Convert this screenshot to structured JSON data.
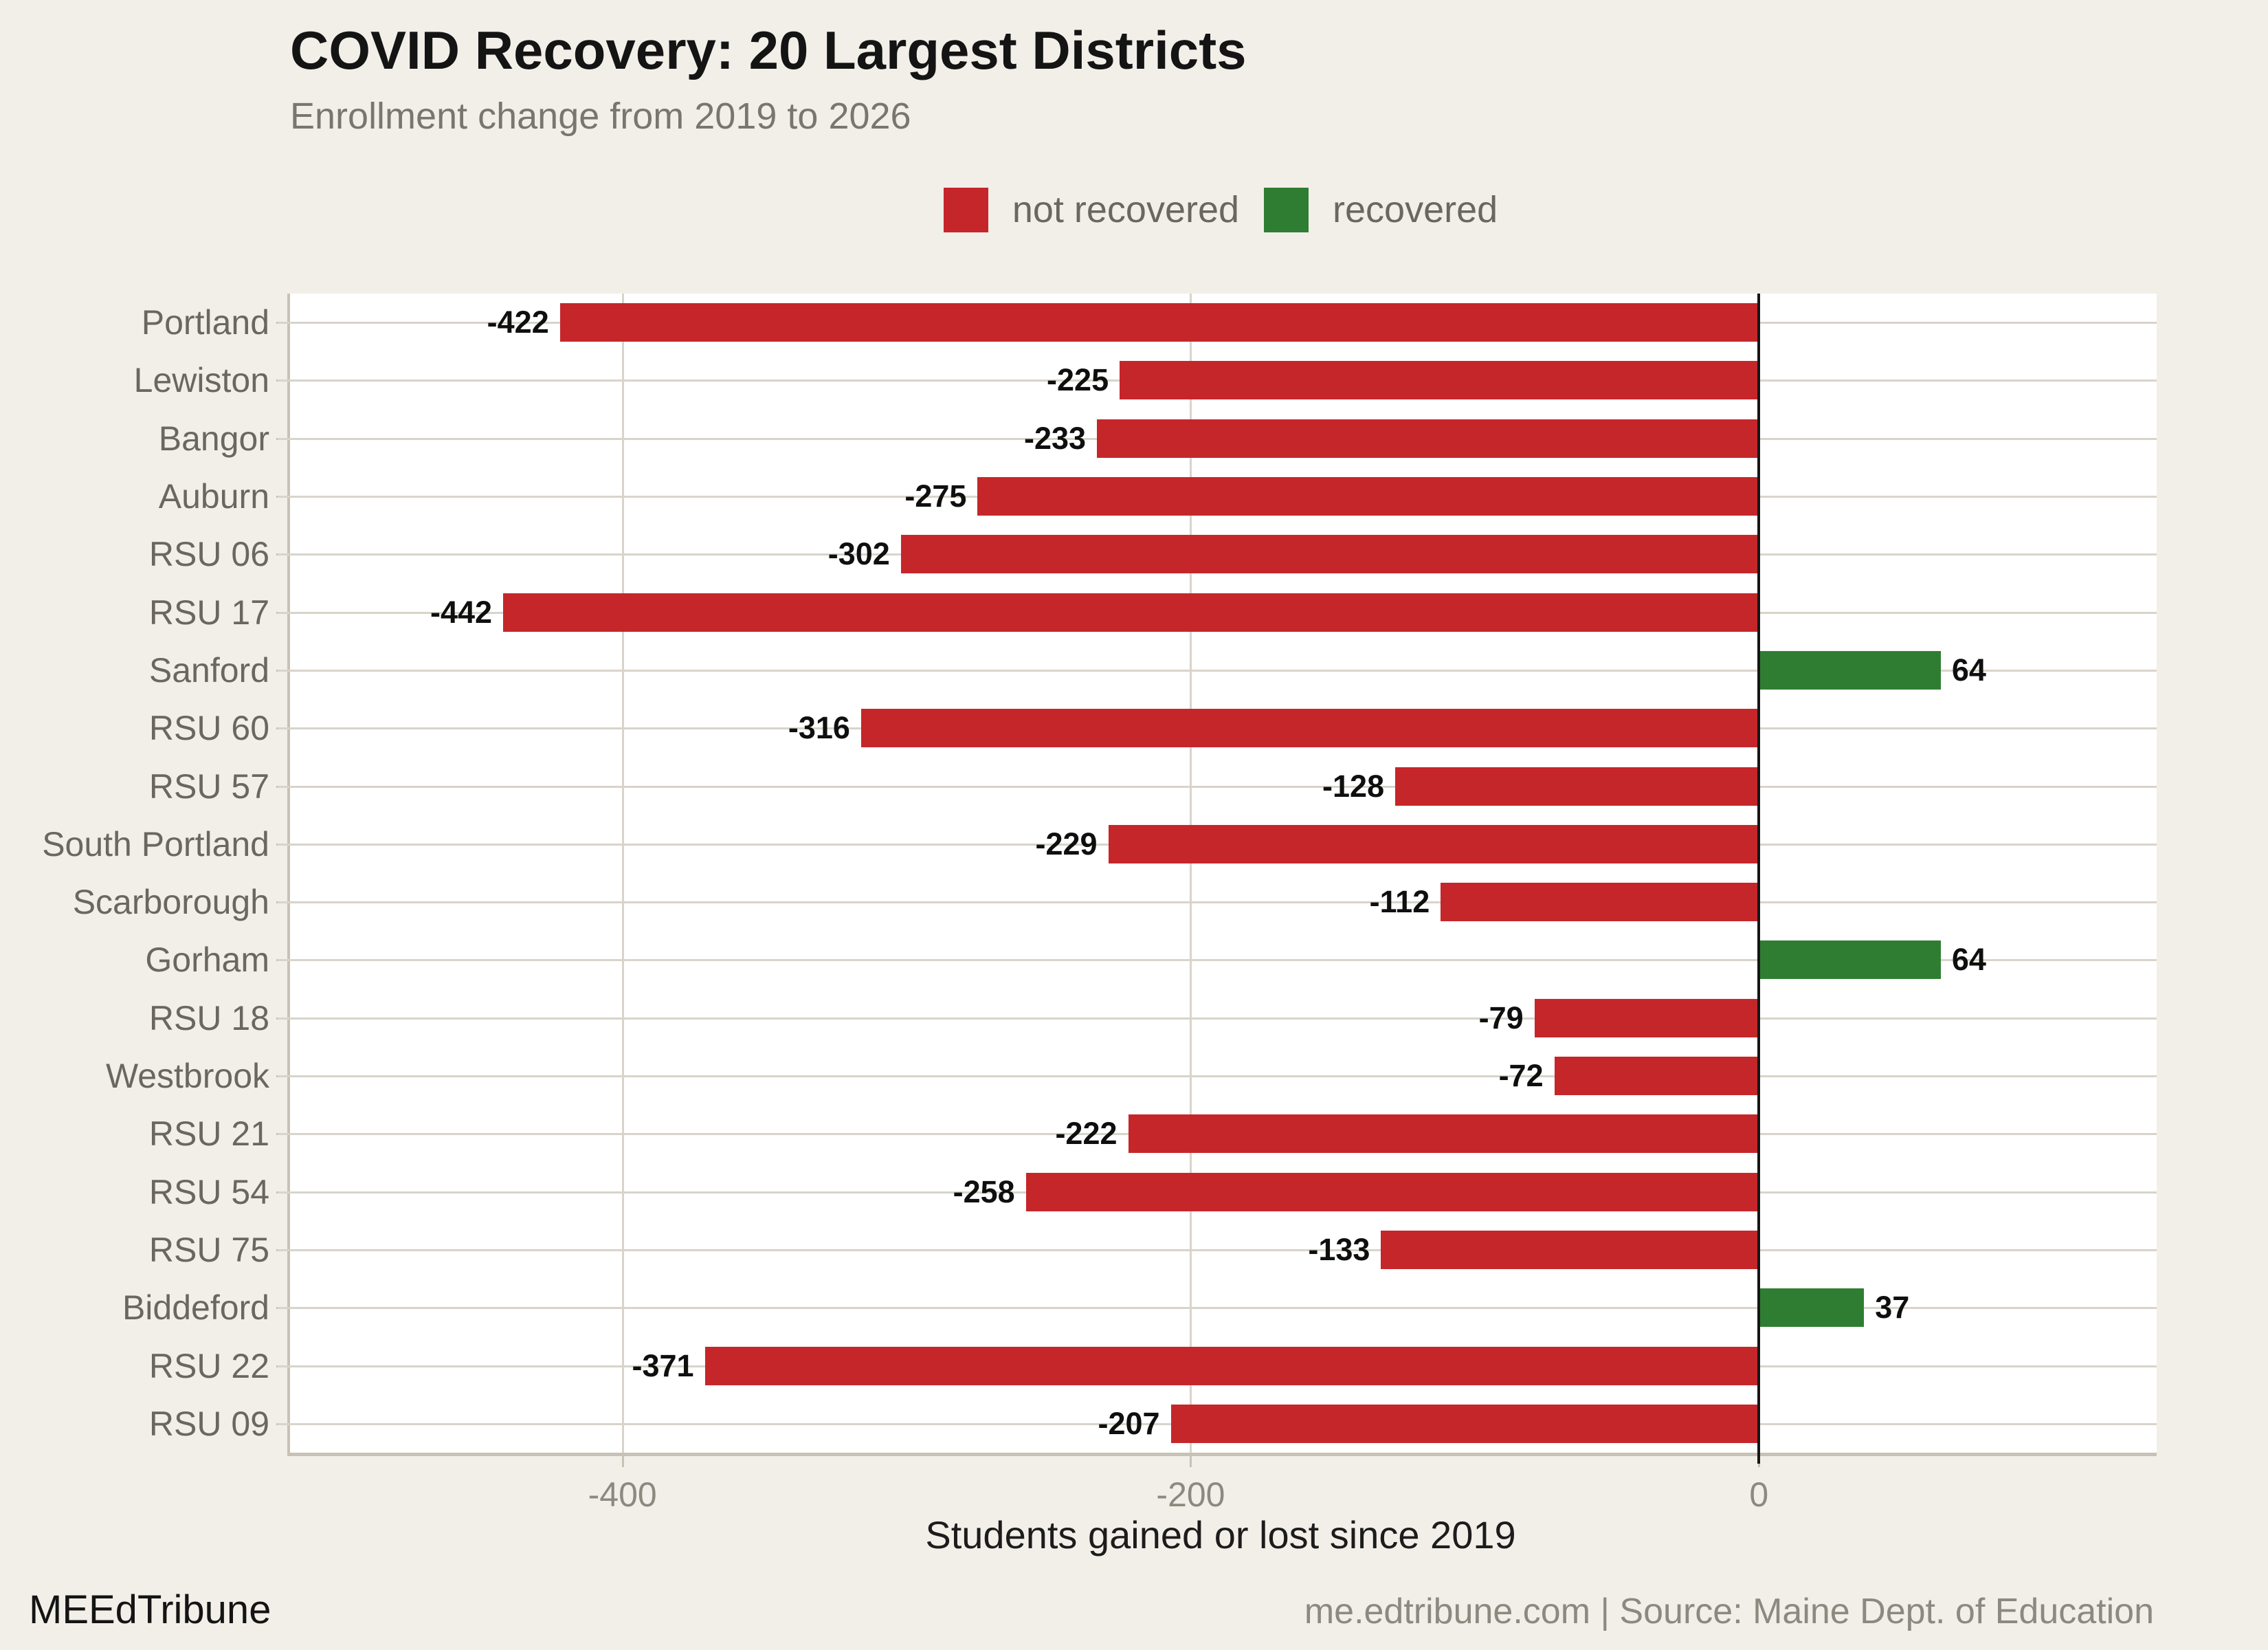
{
  "title": "COVID Recovery: 20 Largest Districts",
  "subtitle": "Enrollment change from 2019 to 2026",
  "legend": [
    {
      "label": "not recovered",
      "color": "#c5262a"
    },
    {
      "label": "recovered",
      "color": "#2f7d32"
    }
  ],
  "chart_data": {
    "type": "bar",
    "orientation": "horizontal",
    "title": "COVID Recovery: 20 Largest Districts",
    "subtitle": "Enrollment change from 2019 to 2026",
    "categories": [
      "Portland",
      "Lewiston",
      "Bangor",
      "Auburn",
      "RSU 06",
      "RSU 17",
      "Sanford",
      "RSU 60",
      "RSU 57",
      "South Portland",
      "Scarborough",
      "Gorham",
      "RSU 18",
      "Westbrook",
      "RSU 21",
      "RSU 54",
      "RSU 75",
      "Biddeford",
      "RSU 22",
      "RSU 09"
    ],
    "values": [
      -422,
      -225,
      -233,
      -275,
      -302,
      -442,
      64,
      -316,
      -128,
      -229,
      -112,
      64,
      -79,
      -72,
      -222,
      -258,
      -133,
      37,
      -371,
      -207
    ],
    "xlabel": "Students gained or lost since 2019",
    "x_ticks": [
      -400,
      -200,
      0
    ],
    "xlim": [
      -517,
      140
    ],
    "grid": true,
    "legend_position": "top",
    "colors": {
      "negative": "#c5262a",
      "positive": "#2f7d32"
    }
  },
  "footer": {
    "brand": "MEEdTribune",
    "source": "me.edtribune.com | Source: Maine Dept. of Education"
  }
}
